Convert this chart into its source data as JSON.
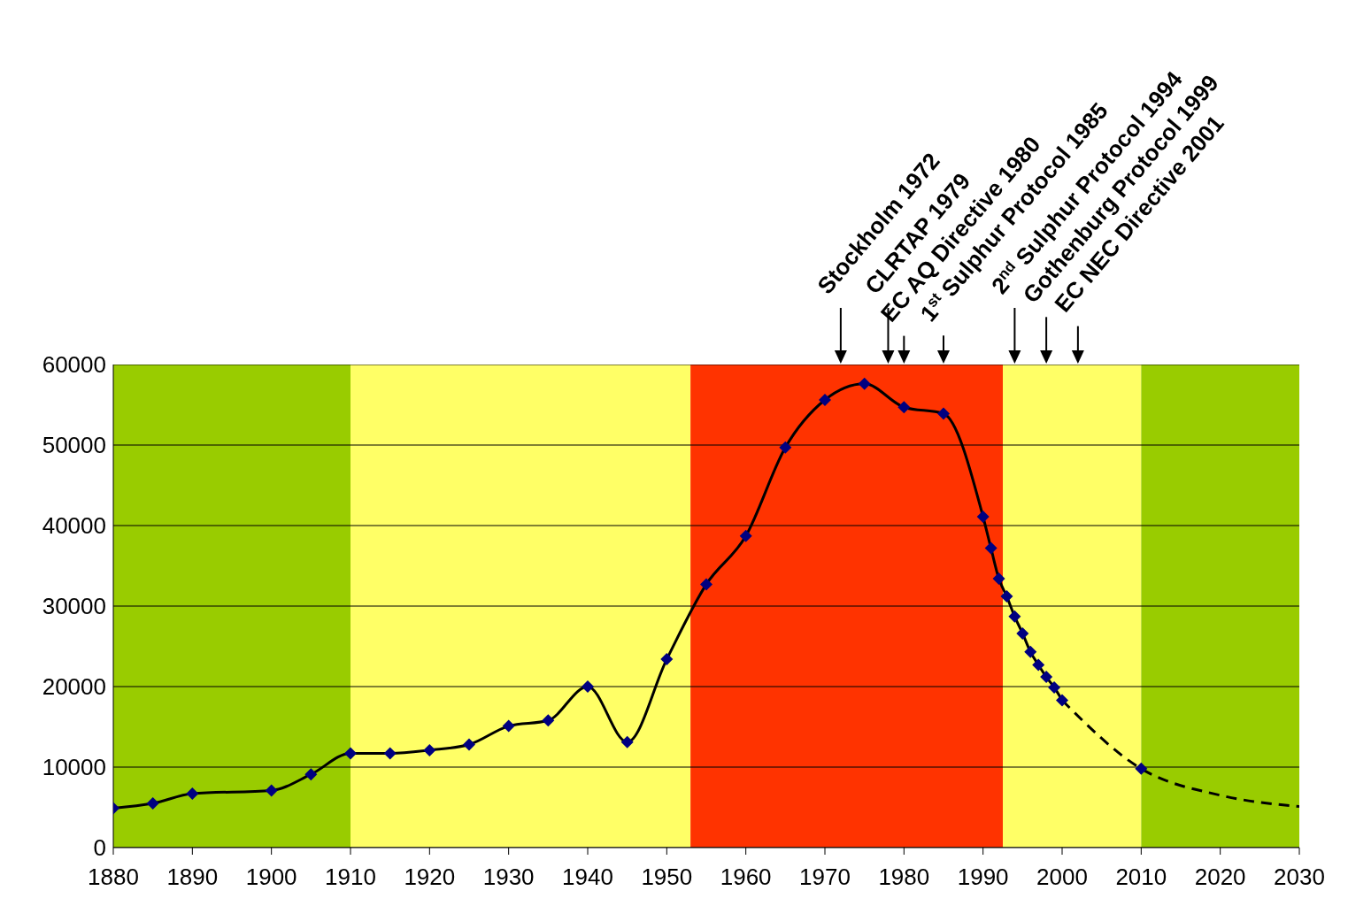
{
  "chart_data": {
    "type": "line",
    "x": [
      1880,
      1885,
      1890,
      1900,
      1905,
      1910,
      1915,
      1920,
      1925,
      1930,
      1935,
      1940,
      1945,
      1950,
      1955,
      1960,
      1965,
      1970,
      1975,
      1980,
      1985,
      1990,
      1991,
      1992,
      1993,
      1994,
      1995,
      1996,
      1997,
      1998,
      1999,
      2000
    ],
    "series": [
      {
        "color": "#000080",
        "marker": "diamond",
        "line_style": "solid",
        "values": [
          4900,
          5500,
          6700,
          7100,
          9100,
          11700,
          11700,
          12100,
          12800,
          15100,
          15800,
          20000,
          13100,
          23400,
          32700,
          38700,
          49700,
          55600,
          57600,
          54700,
          53900,
          41100,
          37200,
          33400,
          31200,
          28700,
          26600,
          24300,
          22700,
          21200,
          19900,
          18300
        ]
      },
      {
        "type": "line",
        "color": "#000000",
        "marker": "none",
        "line_style": "dashed",
        "x": [
          2000,
          2010,
          2020,
          2030
        ],
        "values": [
          18300,
          9800,
          6500,
          5100
        ]
      },
      {
        "type": "scatter",
        "color": "#000080",
        "marker": "diamond",
        "x": [
          2010
        ],
        "values": [
          9800
        ]
      }
    ],
    "xlim": [
      1880,
      2030
    ],
    "xticks": [
      1880,
      1890,
      1900,
      1910,
      1920,
      1930,
      1940,
      1950,
      1960,
      1970,
      1980,
      1990,
      2000,
      2010,
      2020,
      2030
    ],
    "ylim": [
      0,
      60000
    ],
    "yticks": [
      0,
      10000,
      20000,
      30000,
      40000,
      50000,
      60000
    ],
    "grid": "y",
    "bands": [
      {
        "axis": "x",
        "from": 1880,
        "to": 1910,
        "color": "#99cc00"
      },
      {
        "axis": "x",
        "from": 1910,
        "to": 1953,
        "color": "#ffff66"
      },
      {
        "axis": "x",
        "from": 1953,
        "to": 1992.5,
        "color": "#ff3300"
      },
      {
        "axis": "x",
        "from": 1992.5,
        "to": 2010,
        "color": "#ffff66"
      },
      {
        "axis": "x",
        "from": 2010,
        "to": 2030,
        "color": "#99cc00"
      }
    ],
    "annotations": [
      {
        "text": "Stockholm 1972",
        "x": 1972,
        "y": 60000
      },
      {
        "text": "CLRTAP 1979",
        "x": 1978,
        "y": 60000
      },
      {
        "text": "EC AQ Directive 1980",
        "x": 1980,
        "y": 60000
      },
      {
        "text": "1$^{st}$ Sulphur Protocol 1985",
        "x": 1985,
        "y": 60000
      },
      {
        "text": "2$^{nd}$ Sulphur Protocol 1994",
        "x": 1994,
        "y": 60000
      },
      {
        "text": "Gothenburg Protocol 1999",
        "x": 1998,
        "y": 60000
      },
      {
        "text": "EC NEC Directive 2001",
        "x": 2002,
        "y": 60000
      }
    ]
  }
}
